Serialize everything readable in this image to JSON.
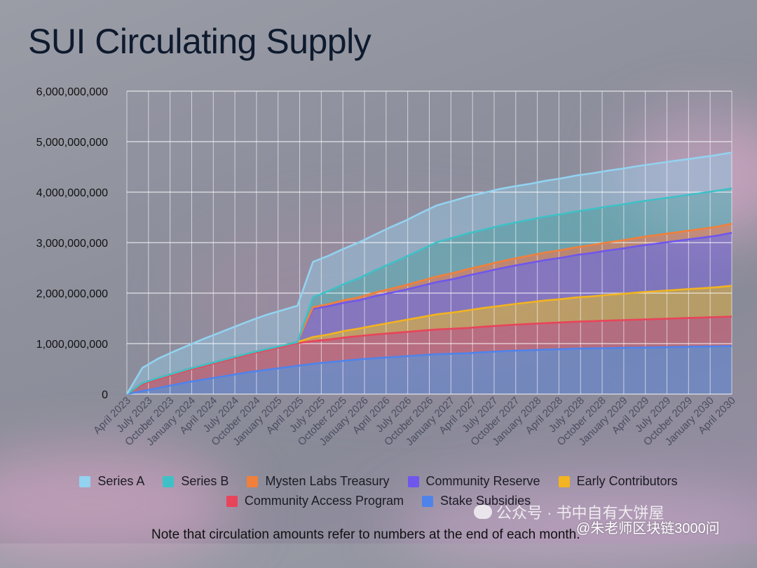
{
  "title": "SUI Circulating Supply",
  "chart_data": {
    "type": "area",
    "stacked": true,
    "title": "SUI Circulating Supply",
    "xlabel": "",
    "ylabel": "",
    "ylim": [
      0,
      6000000000
    ],
    "y_ticks": [
      0,
      1000000000,
      2000000000,
      3000000000,
      4000000000,
      5000000000,
      6000000000
    ],
    "y_tick_labels": [
      "0",
      "1,000,000,000",
      "2,000,000,000",
      "3,000,000,000",
      "4,000,000,000",
      "5,000,000,000",
      "6,000,000,000"
    ],
    "x_tick_labels": [
      "April 2023",
      "July 2023",
      "October 2023",
      "January 2024",
      "April 2024",
      "July 2024",
      "October 2024",
      "January 2025",
      "April 2025",
      "July 2025",
      "October 2025",
      "January 2026",
      "April 2026",
      "July 2026",
      "October 2026",
      "January 2027",
      "April 2027",
      "July 2027",
      "October 2027",
      "January 2028",
      "April 2028",
      "July 2028",
      "October 2028",
      "January 2029",
      "April 2029",
      "July 2029",
      "October 2029",
      "January 2030",
      "April 2030"
    ],
    "grid": true,
    "legend_position": "bottom",
    "series": [
      {
        "name": "Stake Subsidies",
        "color": "#4f83ea",
        "values": [
          0,
          60000000,
          120000000,
          180000000,
          240000000,
          290000000,
          340000000,
          390000000,
          440000000,
          480000000,
          520000000,
          560000000,
          600000000,
          630000000,
          660000000,
          690000000,
          710000000,
          730000000,
          750000000,
          770000000,
          790000000,
          800000000,
          810000000,
          830000000,
          845000000,
          860000000,
          870000000,
          880000000,
          890000000,
          900000000,
          905000000,
          910000000,
          915000000,
          920000000,
          925000000,
          930000000,
          935000000,
          940000000,
          945000000,
          950000000
        ]
      },
      {
        "name": "Community Access Program",
        "color": "#e8445a",
        "values": [
          0,
          140000000,
          180000000,
          210000000,
          240000000,
          270000000,
          300000000,
          330000000,
          360000000,
          390000000,
          420000000,
          450000000,
          450000000,
          450000000,
          460000000,
          460000000,
          470000000,
          475000000,
          480000000,
          485000000,
          490000000,
          495000000,
          500000000,
          505000000,
          510000000,
          515000000,
          520000000,
          525000000,
          530000000,
          535000000,
          540000000,
          545000000,
          550000000,
          555000000,
          560000000,
          565000000,
          570000000,
          575000000,
          580000000,
          585000000
        ]
      },
      {
        "name": "Early Contributors",
        "color": "#f2b420",
        "values": [
          0,
          20000000,
          20000000,
          20000000,
          20000000,
          20000000,
          20000000,
          20000000,
          20000000,
          20000000,
          20000000,
          20000000,
          80000000,
          100000000,
          130000000,
          150000000,
          180000000,
          210000000,
          240000000,
          270000000,
          300000000,
          320000000,
          350000000,
          370000000,
          390000000,
          410000000,
          430000000,
          450000000,
          460000000,
          480000000,
          490000000,
          510000000,
          520000000,
          540000000,
          550000000,
          560000000,
          570000000,
          580000000,
          590000000,
          610000000
        ]
      },
      {
        "name": "Community Reserve",
        "color": "#6f57ec",
        "values": [
          0,
          0,
          0,
          0,
          0,
          0,
          0,
          0,
          0,
          0,
          0,
          0,
          560000000,
          560000000,
          560000000,
          560000000,
          580000000,
          590000000,
          600000000,
          620000000,
          640000000,
          660000000,
          690000000,
          710000000,
          740000000,
          760000000,
          780000000,
          800000000,
          820000000,
          840000000,
          860000000,
          880000000,
          900000000,
          920000000,
          940000000,
          960000000,
          980000000,
          1000000000,
          1020000000,
          1050000000
        ]
      },
      {
        "name": "Mysten Labs Treasury",
        "color": "#f0803c",
        "values": [
          0,
          0,
          0,
          0,
          0,
          0,
          0,
          0,
          0,
          0,
          0,
          0,
          30000000,
          40000000,
          50000000,
          60000000,
          70000000,
          80000000,
          90000000,
          100000000,
          110000000,
          120000000,
          125000000,
          130000000,
          135000000,
          140000000,
          145000000,
          150000000,
          152000000,
          155000000,
          158000000,
          160000000,
          163000000,
          165000000,
          168000000,
          170000000,
          172000000,
          175000000,
          178000000,
          180000000
        ]
      },
      {
        "name": "Series B",
        "color": "#3fc0c6",
        "values": [
          0,
          0,
          0,
          0,
          0,
          0,
          0,
          0,
          0,
          0,
          0,
          0,
          200000000,
          260000000,
          320000000,
          380000000,
          440000000,
          500000000,
          560000000,
          620000000,
          680000000,
          700000000,
          710000000,
          710000000,
          710000000,
          710000000,
          710000000,
          710000000,
          710000000,
          710000000,
          710000000,
          710000000,
          710000000,
          710000000,
          710000000,
          710000000,
          710000000,
          710000000,
          710000000,
          700000000
        ]
      },
      {
        "name": "Series A",
        "color": "#93d2f0",
        "values": [
          0,
          300000000,
          380000000,
          430000000,
          470000000,
          520000000,
          560000000,
          600000000,
          640000000,
          680000000,
          700000000,
          720000000,
          700000000,
          700000000,
          700000000,
          710000000,
          710000000,
          720000000,
          720000000,
          730000000,
          730000000,
          730000000,
          730000000,
          730000000,
          730000000,
          720000000,
          710000000,
          710000000,
          710000000,
          710000000,
          710000000,
          710000000,
          710000000,
          710000000,
          710000000,
          710000000,
          710000000,
          710000000,
          710000000,
          710000000
        ]
      }
    ]
  },
  "legend_row1": [
    {
      "label": "Series A",
      "color": "#93d2f0"
    },
    {
      "label": "Series B",
      "color": "#3fc0c6"
    },
    {
      "label": "Mysten Labs Treasury",
      "color": "#f0803c"
    },
    {
      "label": "Community Reserve",
      "color": "#6f57ec"
    },
    {
      "label": "Early Contributors",
      "color": "#f2b420"
    }
  ],
  "legend_row2": [
    {
      "label": "Community Access Program",
      "color": "#e8445a"
    },
    {
      "label": "Stake Subsidies",
      "color": "#4f83ea"
    }
  ],
  "note": "Note that circulation amounts refer to numbers at the end of each month.",
  "watermark": "公众号 · 书中自有大饼屋",
  "credit": "@朱老师区块链3000问"
}
